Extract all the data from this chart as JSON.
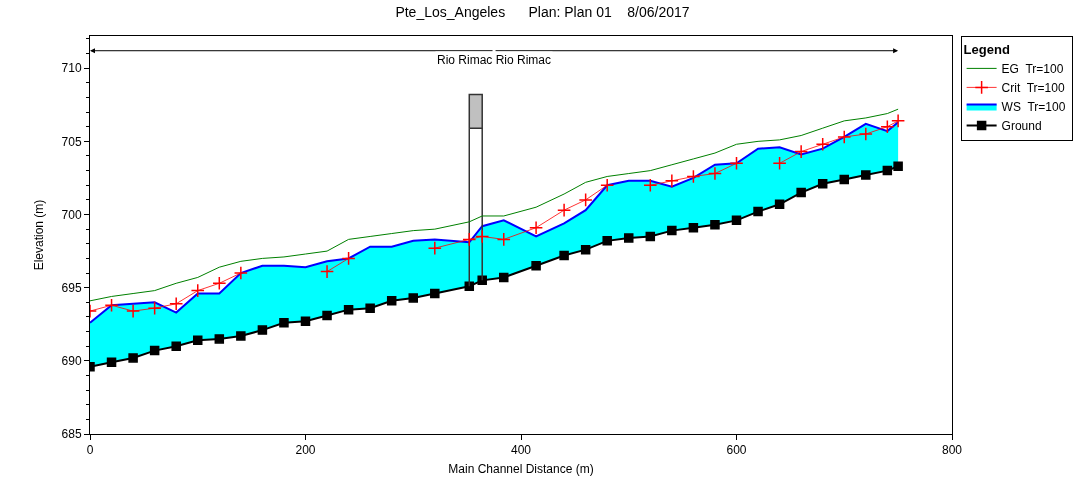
{
  "chart_data": {
    "type": "line",
    "title": "Pte_Los_Angeles      Plan: Plan 01    8/06/2017",
    "xlabel": "Main Channel Distance (m)",
    "ylabel": "Elevation (m)",
    "legend_title": "Legend",
    "annotations": [
      "Rio Rimac Rio Rimac"
    ],
    "xlim": [
      0,
      800
    ],
    "xticks": [
      0,
      200,
      400,
      600,
      800
    ],
    "ylim": [
      685,
      712.2
    ],
    "yticks": [
      685,
      690,
      695,
      700,
      705,
      710
    ],
    "legend": "top right",
    "series": [
      {
        "name": "Ground",
        "color": "#000000",
        "marker": "square",
        "x": [
          0,
          20,
          40,
          60,
          80,
          100,
          120,
          140,
          160,
          180,
          200,
          220,
          240,
          260,
          280,
          300,
          320,
          352,
          364,
          384,
          414,
          440,
          460,
          480,
          500,
          520,
          540,
          560,
          580,
          600,
          620,
          640,
          660,
          680,
          700,
          720,
          740,
          750
        ],
        "values": [
          689.6,
          689.9,
          690.2,
          690.7,
          691.0,
          691.4,
          691.5,
          691.7,
          692.1,
          692.6,
          692.7,
          693.1,
          693.5,
          693.6,
          694.1,
          694.3,
          694.6,
          695.1,
          695.5,
          695.7,
          696.5,
          697.2,
          697.6,
          698.2,
          698.4,
          698.5,
          698.9,
          699.1,
          699.3,
          699.6,
          700.2,
          700.7,
          701.5,
          702.1,
          702.4,
          702.7,
          703.0,
          703.3
        ]
      },
      {
        "name": "WS  Tr=100",
        "type": "area",
        "color": "#0000ff",
        "colors": [
          "#00ffff",
          "#00ffff",
          "#00ffff",
          "#00ffff",
          "#00ffff",
          "#00ffff",
          "#00ffff",
          "#00ffff",
          "#00ffff",
          "#00ffff",
          "#00ffff",
          "#00ffff",
          "#00ffff",
          "#00ffff",
          "#00ffff",
          "#00ffff",
          "#00ffff",
          "#00ffff",
          "#00ffff",
          "#00ffff",
          "#00ffff",
          "#00ffff",
          "#00ffff",
          "#00ffff",
          "#00ffff",
          "#00ffff",
          "#00ffff",
          "#00ffff",
          "#00ffff",
          "#00ffff",
          "#00ffff",
          "#00ffff",
          "#00ffff",
          "#00ffff",
          "#00ffff",
          "#00ffff",
          "#00ffff",
          "#00ffff"
        ],
        "marker": "none",
        "x": [
          0,
          20,
          40,
          60,
          80,
          100,
          120,
          140,
          160,
          180,
          200,
          220,
          240,
          260,
          280,
          300,
          320,
          352,
          364,
          384,
          414,
          440,
          460,
          480,
          500,
          520,
          540,
          560,
          580,
          600,
          620,
          640,
          660,
          680,
          700,
          720,
          740,
          750
        ],
        "values": [
          692.6,
          693.8,
          693.9,
          694.0,
          693.3,
          694.6,
          694.6,
          696.0,
          696.5,
          696.5,
          696.4,
          696.8,
          697.0,
          697.8,
          697.8,
          698.2,
          698.3,
          698.1,
          699.2,
          699.6,
          698.5,
          699.4,
          700.3,
          702.0,
          702.3,
          702.3,
          701.9,
          702.5,
          703.4,
          703.5,
          704.5,
          704.6,
          704.1,
          704.5,
          705.3,
          706.2,
          705.7,
          706.3
        ]
      },
      {
        "type": "area",
        "color": "#c0c0c0",
        "marker": "none",
        "x": [
          352,
          364,
          364,
          352,
          352
        ],
        "values": [
          705.9,
          705.9,
          708.2,
          708.2,
          705.9
        ]
      },
      {
        "color": "#333333",
        "marker": "none",
        "x": [
          352,
          352
        ],
        "values": [
          695.1,
          705.9
        ]
      },
      {
        "color": "#333333",
        "marker": "none",
        "x": [
          364,
          364
        ],
        "values": [
          695.5,
          705.9
        ]
      },
      {
        "name": "Crit  Tr=100",
        "color": "#ff0000",
        "marker": "cross",
        "x": [
          0,
          20,
          40,
          60,
          80,
          100,
          120,
          140,
          160,
          180,
          200,
          220,
          240,
          260,
          280,
          300,
          320,
          352,
          364,
          384,
          414,
          440,
          460,
          480,
          500,
          520,
          540,
          560,
          580,
          600,
          620,
          640,
          660,
          680,
          700,
          720,
          740,
          750
        ],
        "values": [
          693.4,
          693.8,
          693.4,
          693.6,
          693.9,
          694.8,
          695.3,
          696.0,
          null,
          null,
          null,
          696.1,
          697.0,
          null,
          null,
          null,
          697.7,
          698.3,
          698.5,
          698.3,
          699.1,
          700.3,
          701.0,
          702.0,
          null,
          702.0,
          702.3,
          702.6,
          702.8,
          703.5,
          null,
          703.5,
          704.3,
          704.8,
          705.3,
          705.5,
          706.0,
          706.4
        ]
      },
      {
        "name": "EG  Tr=100",
        "color": "#008000",
        "marker": "none",
        "x": [
          0,
          20,
          40,
          60,
          80,
          100,
          120,
          140,
          160,
          180,
          200,
          220,
          240,
          260,
          280,
          300,
          320,
          352,
          364,
          384,
          414,
          440,
          460,
          480,
          500,
          520,
          540,
          560,
          580,
          600,
          620,
          640,
          660,
          680,
          700,
          720,
          740,
          750
        ],
        "values": [
          694.1,
          694.4,
          694.6,
          694.8,
          695.3,
          695.7,
          696.4,
          696.8,
          697.0,
          697.1,
          697.3,
          697.5,
          698.3,
          698.5,
          698.7,
          698.9,
          699.0,
          699.5,
          699.9,
          699.9,
          700.5,
          701.4,
          702.2,
          702.6,
          702.8,
          703.0,
          703.4,
          703.8,
          704.2,
          704.8,
          705.0,
          705.1,
          705.4,
          705.9,
          706.4,
          706.6,
          706.9,
          707.2
        ]
      }
    ]
  }
}
